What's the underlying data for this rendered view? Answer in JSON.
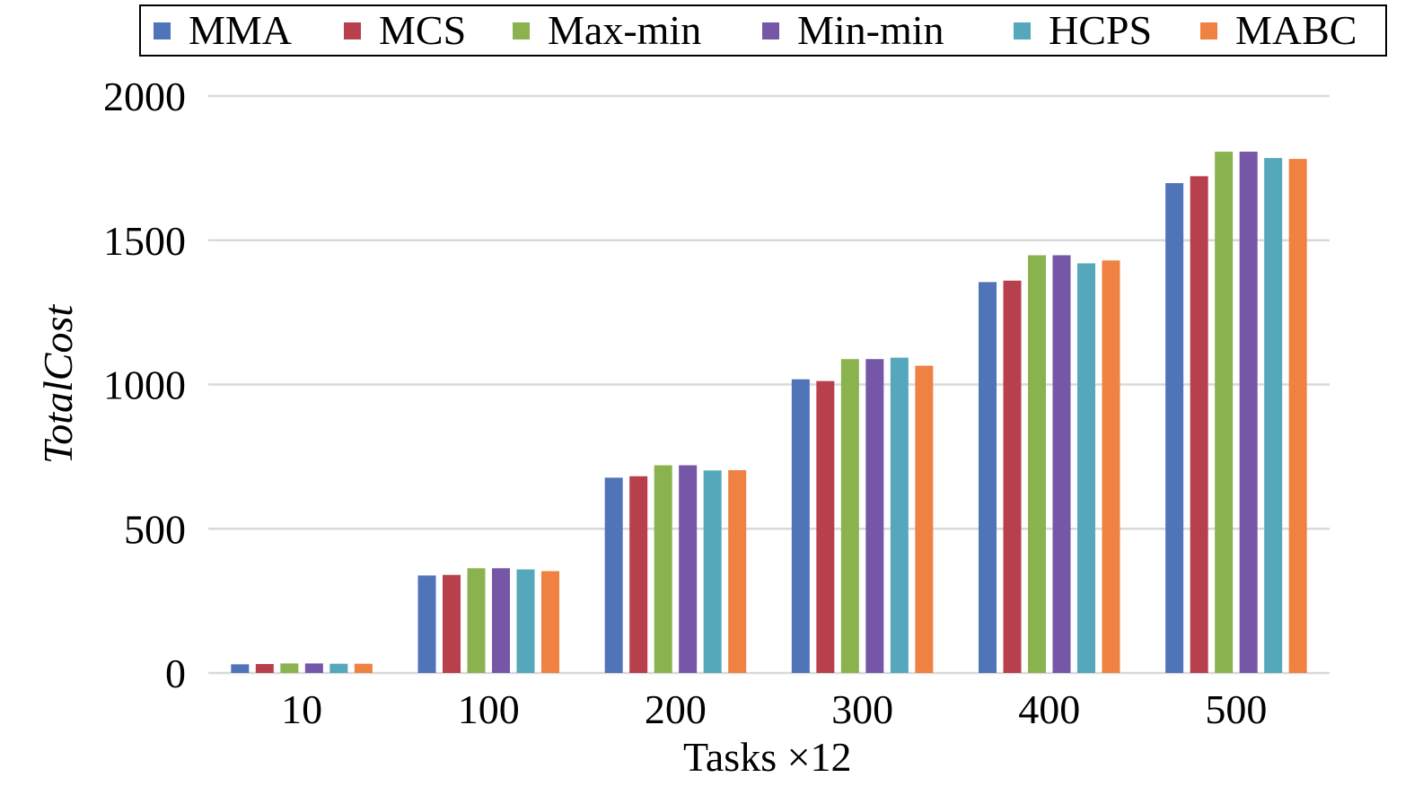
{
  "chart_data": {
    "type": "bar",
    "title": "",
    "xlabel": "Tasks ×12",
    "ylabel": "TotalCost",
    "categories": [
      "10",
      "100",
      "200",
      "300",
      "400",
      "500"
    ],
    "ylim": [
      0,
      2000
    ],
    "yticks": [
      0,
      500,
      1000,
      1500,
      2000
    ],
    "grid": true,
    "legend_position": "top",
    "series": [
      {
        "name": "MMA",
        "color": "#4f74b8",
        "values": [
          30,
          338,
          677,
          1018,
          1355,
          1698
        ]
      },
      {
        "name": "MCS",
        "color": "#b8404c",
        "values": [
          31,
          340,
          682,
          1012,
          1360,
          1722
        ]
      },
      {
        "name": "Max-min",
        "color": "#8ab34f",
        "values": [
          33,
          363,
          720,
          1088,
          1448,
          1807
        ]
      },
      {
        "name": "Min-min",
        "color": "#7656a6",
        "values": [
          33,
          363,
          720,
          1088,
          1448,
          1807
        ]
      },
      {
        "name": "HCPS",
        "color": "#55a8bc",
        "values": [
          32,
          359,
          702,
          1093,
          1420,
          1785
        ]
      },
      {
        "name": "MABC",
        "color": "#ef8142",
        "values": [
          32,
          353,
          703,
          1065,
          1430,
          1782
        ]
      }
    ]
  }
}
